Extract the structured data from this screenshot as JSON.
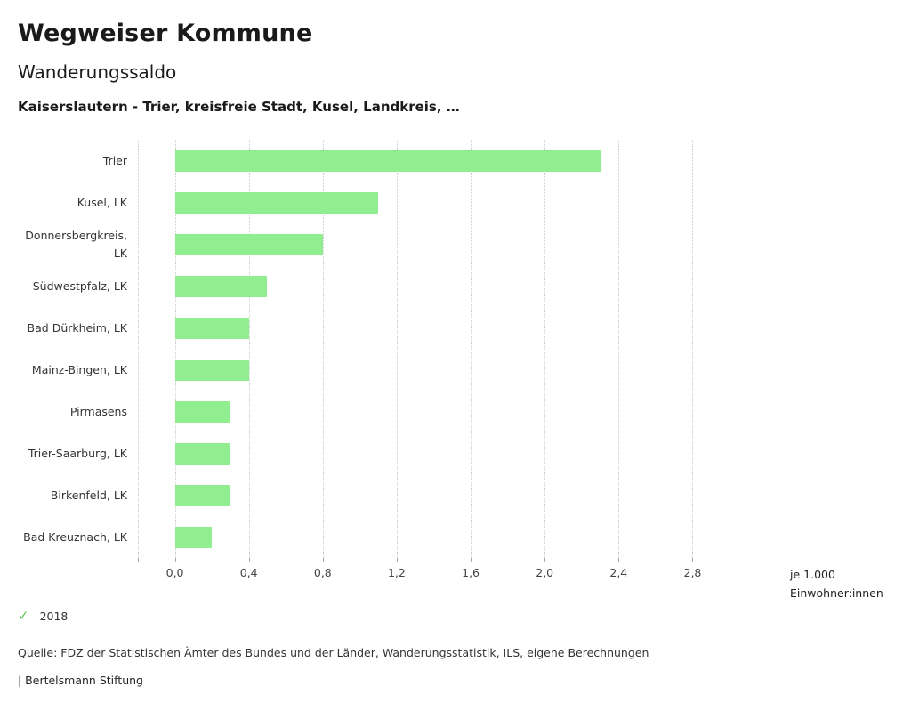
{
  "header": {
    "title": "Wegweiser Kommune",
    "subtitle": "Wanderungssaldo",
    "filter_line": "Kaiserslautern - Trier, kreisfreie Stadt, Kusel, Landkreis, …"
  },
  "chart_data": {
    "type": "bar",
    "orientation": "horizontal",
    "title": "Wanderungssaldo",
    "categories": [
      "Trier",
      "Kusel, LK",
      "Donnersbergkreis, LK",
      "Südwestpfalz, LK",
      "Bad Dürkheim, LK",
      "Mainz-Bingen, LK",
      "Pirmasens",
      "Trier-Saarburg, LK",
      "Birkenfeld, LK",
      "Bad Kreuznach, LK"
    ],
    "values": [
      2.3,
      1.1,
      0.8,
      0.5,
      0.4,
      0.4,
      0.3,
      0.3,
      0.3,
      0.2
    ],
    "xlim": [
      -0.2,
      3.0
    ],
    "xticks": [
      0.0,
      0.4,
      0.8,
      1.2,
      1.6,
      2.0,
      2.4,
      2.8
    ],
    "xtick_labels": [
      "0,0",
      "0,4",
      "0,8",
      "1,2",
      "1,6",
      "2,0",
      "2,4",
      "2,8"
    ],
    "bar_color": "#90ee90",
    "grid": "dotted-vertical",
    "legend_position": "bottom-left",
    "unit_label": "je 1.000 Einwohner:innen",
    "series_year": "2018"
  },
  "unit": {
    "line1": "je 1.000",
    "line2": "Einwohner:innen"
  },
  "legend": {
    "year": "2018",
    "check_color": "#5fc75f"
  },
  "footer": {
    "source": "Quelle: FDZ der Statistischen Ämter des Bundes und der Länder, Wanderungsstatistik, ILS, eigene Berechnungen",
    "brand": "| Bertelsmann Stiftung"
  }
}
